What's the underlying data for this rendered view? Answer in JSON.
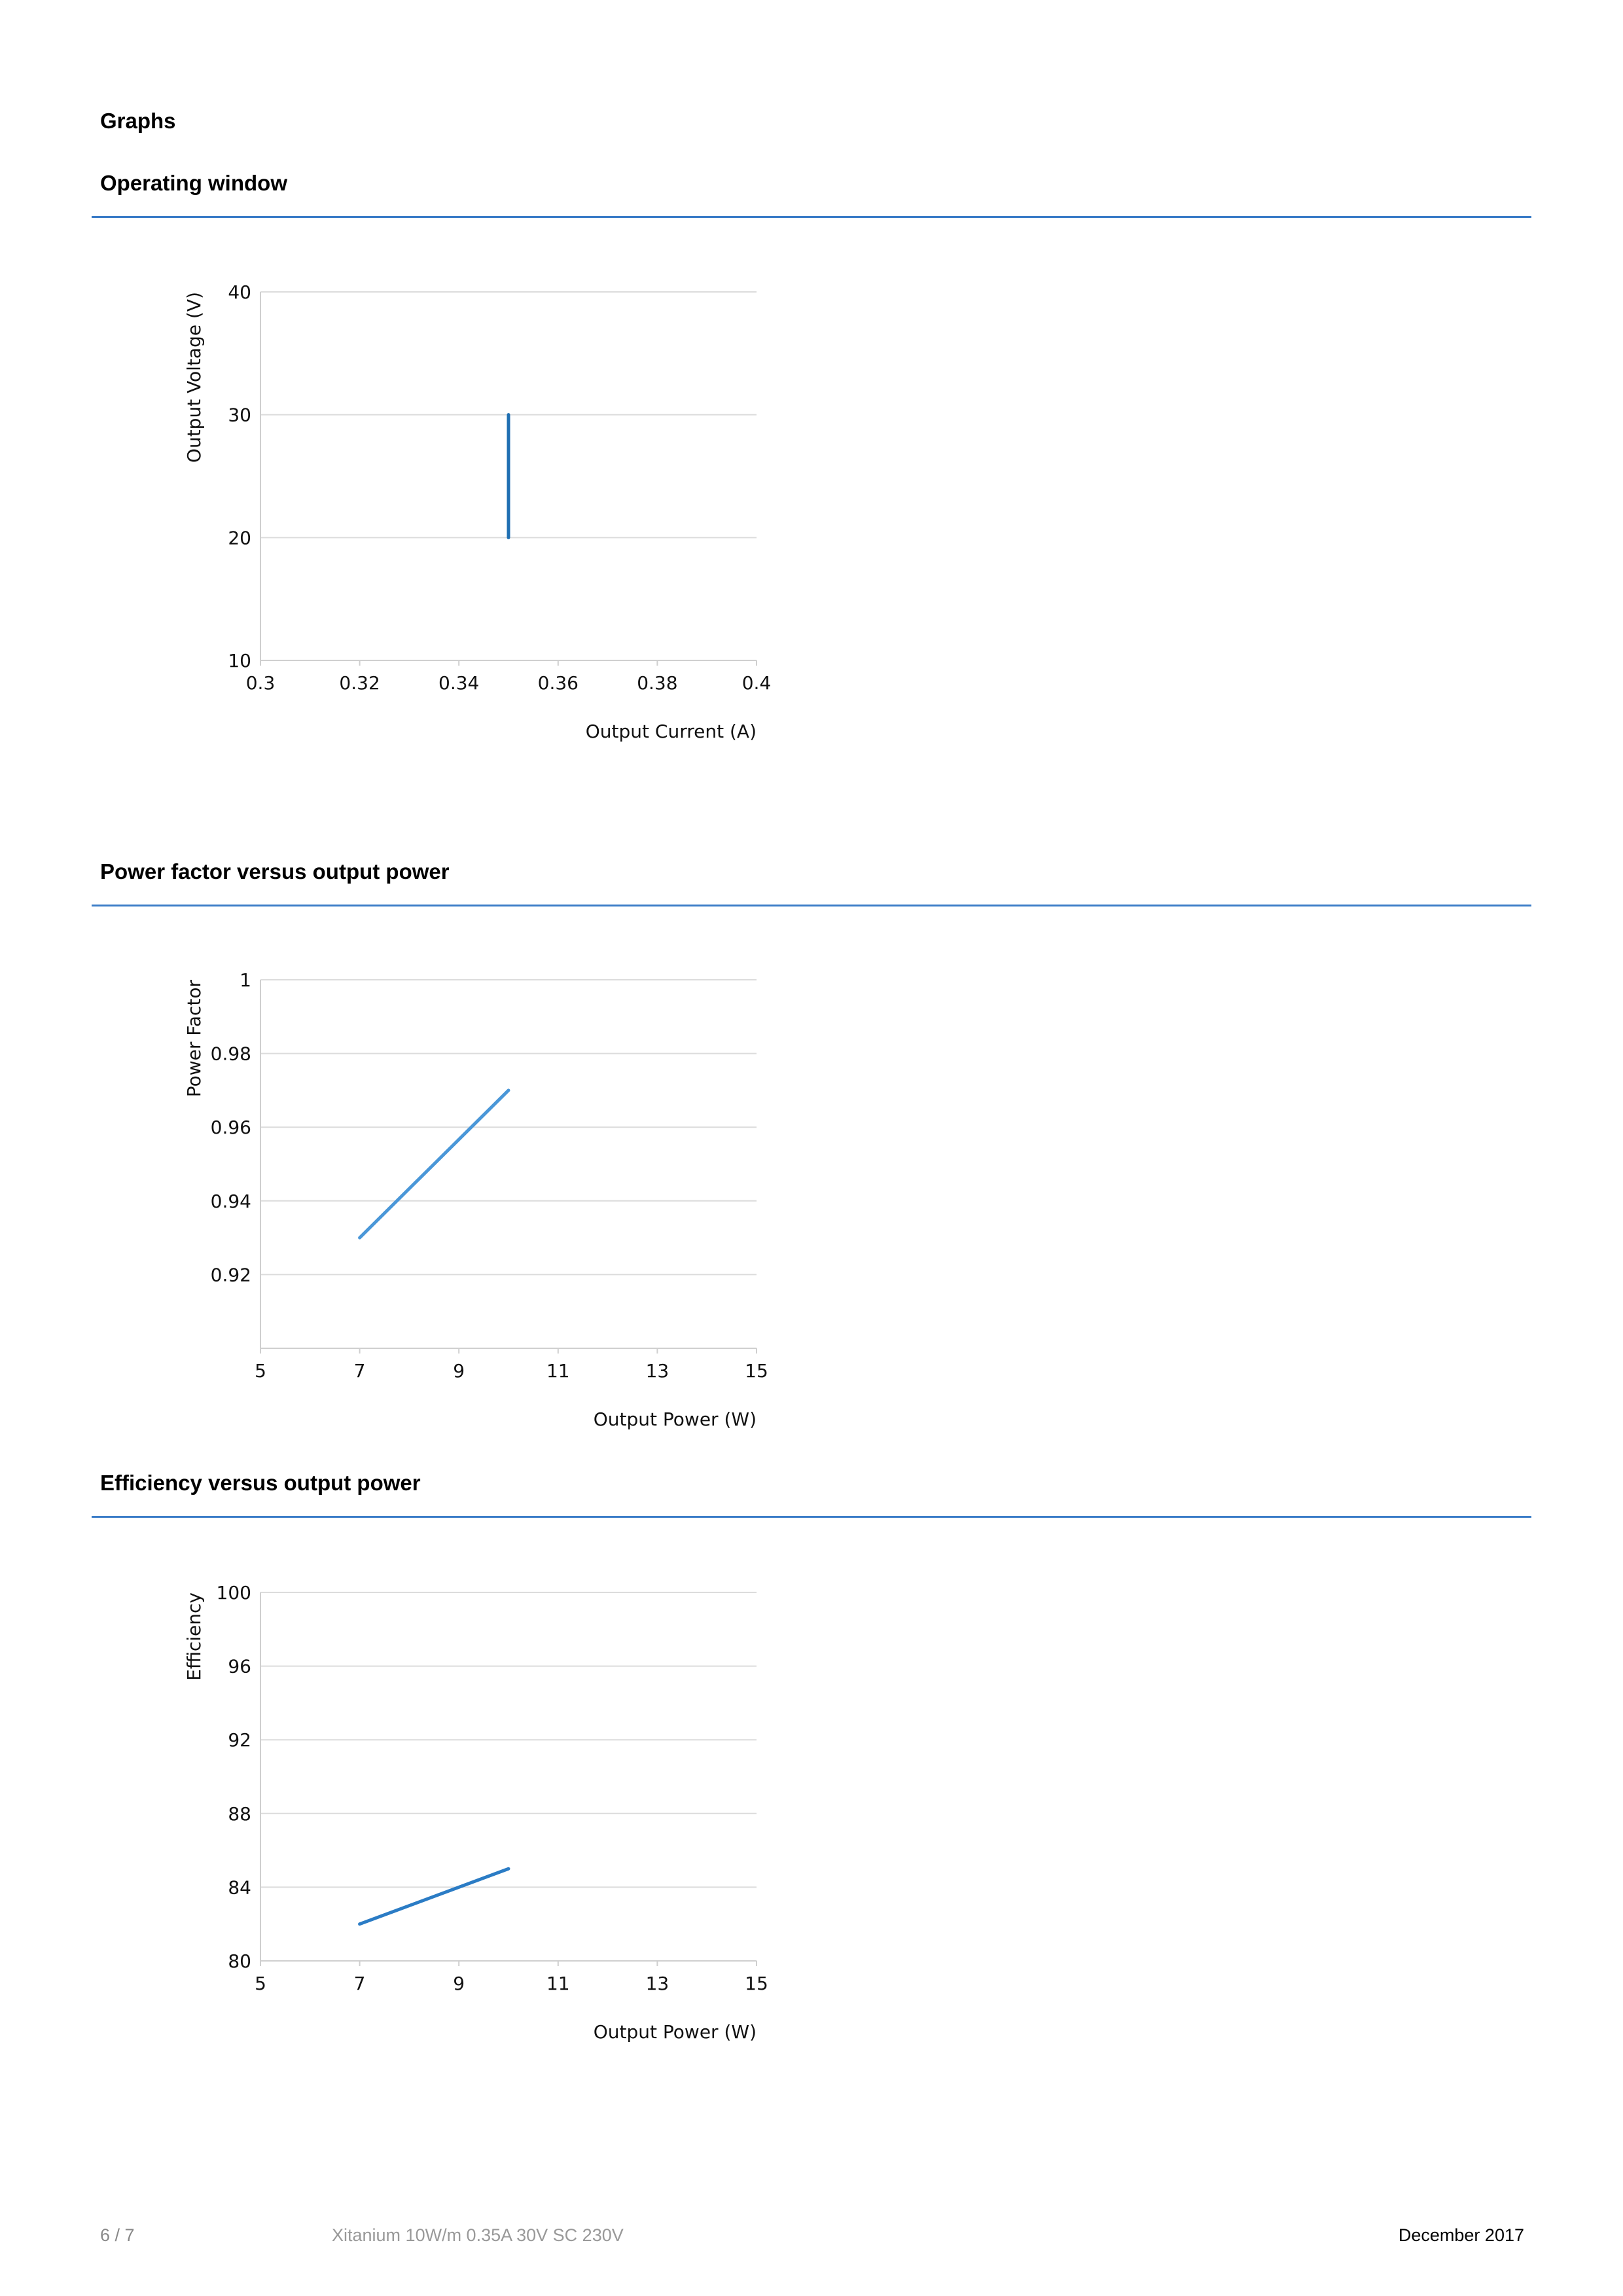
{
  "page": {
    "section_title": "Graphs",
    "footer": {
      "page_number": "6 / 7",
      "product": "Xitanium 10W/m 0.35A 30V SC 230V",
      "date": "December 2017"
    }
  },
  "sections": [
    {
      "title": "Operating window"
    },
    {
      "title": "Power factor versus output power"
    },
    {
      "title": "Efficiency versus output power"
    }
  ],
  "chart_data": [
    {
      "type": "line",
      "title": "Operating window",
      "xlabel": "Output Current (A)",
      "ylabel": "Output Voltage (V)",
      "xlim": [
        0.3,
        0.4
      ],
      "ylim": [
        10,
        40
      ],
      "xticks": [
        0.3,
        0.32,
        0.34,
        0.36,
        0.38,
        0.4
      ],
      "xtick_labels": [
        "0.3",
        "0.32",
        "0.34",
        "0.36",
        "0.38",
        "0.4"
      ],
      "yticks": [
        10,
        20,
        30,
        40
      ],
      "ytick_labels": [
        "10",
        "20",
        "30",
        "40"
      ],
      "grid": true,
      "series": [
        {
          "x": [
            0.35,
            0.35
          ],
          "y": [
            20,
            30
          ],
          "color": "#1f6fb2"
        }
      ]
    },
    {
      "type": "line",
      "title": "Power factor versus output power",
      "xlabel": "Output Power (W)",
      "ylabel": "Power Factor",
      "xlim": [
        5,
        15
      ],
      "ylim": [
        0.9,
        1
      ],
      "xticks": [
        5,
        7,
        9,
        11,
        13,
        15
      ],
      "xtick_labels": [
        "5",
        "7",
        "9",
        "11",
        "13",
        "15"
      ],
      "yticks": [
        0.92,
        0.94,
        0.96,
        0.98,
        1
      ],
      "ytick_labels": [
        "0.92",
        "0.94",
        "0.96",
        "0.98",
        "1"
      ],
      "grid": true,
      "series": [
        {
          "x": [
            7,
            10
          ],
          "y": [
            0.93,
            0.97
          ],
          "color": "#4a97d8"
        }
      ]
    },
    {
      "type": "line",
      "title": "Efficiency versus output power",
      "xlabel": "Output Power (W)",
      "ylabel": "Efficiency",
      "xlim": [
        5,
        15
      ],
      "ylim": [
        80,
        100
      ],
      "xticks": [
        5,
        7,
        9,
        11,
        13,
        15
      ],
      "xtick_labels": [
        "5",
        "7",
        "9",
        "11",
        "13",
        "15"
      ],
      "yticks": [
        80,
        84,
        88,
        92,
        96,
        100
      ],
      "ytick_labels": [
        "80",
        "84",
        "88",
        "92",
        "96",
        "100"
      ],
      "grid": true,
      "series": [
        {
          "x": [
            7,
            10
          ],
          "y": [
            82,
            85
          ],
          "color": "#2b7cc5"
        }
      ]
    }
  ]
}
